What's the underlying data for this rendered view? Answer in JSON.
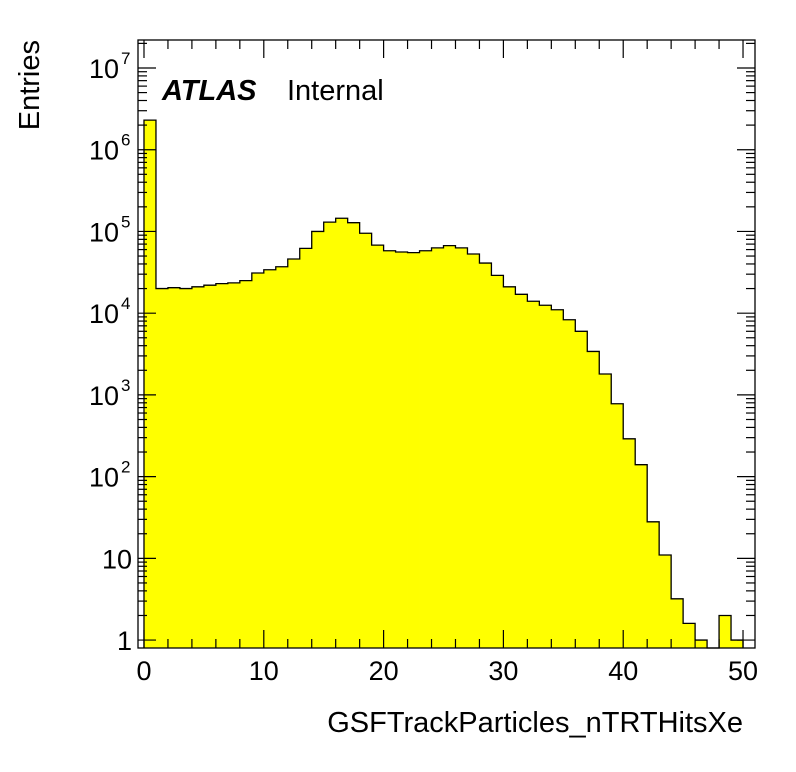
{
  "chart_data": {
    "type": "bar",
    "histogram": true,
    "fill_color": "#ffff00",
    "edge_color": "#000000",
    "xlabel": "GSFTrackParticles_nTRTHitsXe",
    "ylabel": "Entries",
    "xlim": [
      -0.5,
      51
    ],
    "ylim": [
      0.8,
      22000000
    ],
    "y_scale": "log",
    "bin_width": 1,
    "bin_start": 0,
    "values": [
      2300000,
      20000,
      20500,
      20000,
      21000,
      22000,
      23000,
      23500,
      25000,
      31000,
      34000,
      37000,
      46000,
      62000,
      100000,
      130000,
      145000,
      128000,
      95000,
      68000,
      58000,
      56000,
      55000,
      58000,
      63000,
      67000,
      63000,
      53000,
      41000,
      29000,
      21000,
      17000,
      14000,
      12500,
      11000,
      8300,
      6000,
      3400,
      1800,
      780,
      290,
      140,
      28,
      11,
      3.2,
      1.6,
      1,
      0,
      2,
      1
    ],
    "x_ticks": [
      0,
      10,
      20,
      30,
      40,
      50
    ],
    "y_ticks": [
      {
        "value": 1,
        "base": "1",
        "exp": ""
      },
      {
        "value": 10,
        "base": "10",
        "exp": ""
      },
      {
        "value": 100,
        "base": "10",
        "exp": "2"
      },
      {
        "value": 1000,
        "base": "10",
        "exp": "3"
      },
      {
        "value": 10000,
        "base": "10",
        "exp": "4"
      },
      {
        "value": 100000,
        "base": "10",
        "exp": "5"
      },
      {
        "value": 1000000,
        "base": "10",
        "exp": "6"
      },
      {
        "value": 10000000,
        "base": "10",
        "exp": "7"
      }
    ],
    "label_main": "ATLAS",
    "label_sub": "Internal"
  }
}
